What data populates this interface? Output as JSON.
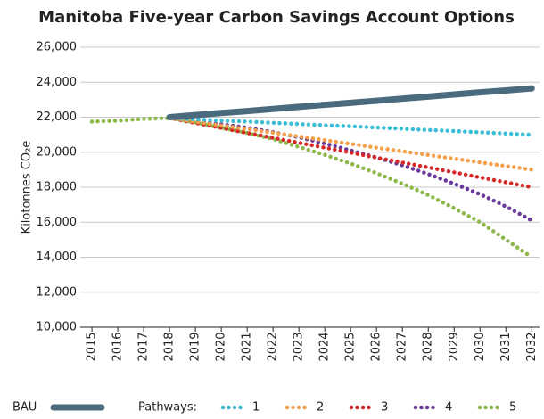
{
  "chart_data": {
    "type": "line",
    "title": "Manitoba Five-year Carbon Savings Account Options",
    "y_label": "Kilotonnes CO₂e",
    "legend_title": "Pathways:",
    "x": [
      2015,
      2016,
      2017,
      2018,
      2019,
      2020,
      2021,
      2022,
      2023,
      2024,
      2025,
      2026,
      2027,
      2028,
      2029,
      2030,
      2031,
      2032
    ],
    "xlim": [
      2014.55,
      2032.3
    ],
    "xticks": [
      2015,
      2016,
      2017,
      2018,
      2019,
      2020,
      2021,
      2022,
      2023,
      2024,
      2025,
      2026,
      2027,
      2028,
      2029,
      2030,
      2031,
      2032
    ],
    "ylim": [
      10000,
      26000
    ],
    "yticks": [
      {
        "value": 10000,
        "label": "10,000"
      },
      {
        "value": 12000,
        "label": "12,000"
      },
      {
        "value": 14000,
        "label": "14,000"
      },
      {
        "value": 16000,
        "label": "16,000"
      },
      {
        "value": 18000,
        "label": "18,000"
      },
      {
        "value": 20000,
        "label": "20,000"
      },
      {
        "value": 22000,
        "label": "22,000"
      },
      {
        "value": 24000,
        "label": "24,000"
      },
      {
        "value": 26000,
        "label": "26,000"
      }
    ],
    "grid": true,
    "legend": "bottom",
    "series": [
      {
        "name": "BAU",
        "color": "#4a6b7d",
        "style": "solid",
        "values": [
          null,
          null,
          null,
          22000,
          22120,
          22240,
          22350,
          22470,
          22590,
          22710,
          22820,
          22940,
          23060,
          23180,
          23300,
          23420,
          23530,
          23650
        ]
      },
      {
        "name": "1",
        "color": "#3bbdd6",
        "style": "dotted",
        "values": [
          null,
          null,
          null,
          21950,
          21880,
          21810,
          21750,
          21680,
          21610,
          21540,
          21480,
          21410,
          21340,
          21270,
          21210,
          21140,
          21070,
          21000
        ]
      },
      {
        "name": "2",
        "color": "#f5a04a",
        "style": "dotted",
        "values": [
          null,
          null,
          null,
          21950,
          21740,
          21530,
          21320,
          21110,
          20900,
          20690,
          20480,
          20260,
          20050,
          19840,
          19630,
          19420,
          19210,
          19000
        ]
      },
      {
        "name": "3",
        "color": "#d62a2a",
        "style": "dotted",
        "values": [
          null,
          null,
          null,
          21950,
          21670,
          21390,
          21100,
          20820,
          20540,
          20260,
          19980,
          19690,
          19410,
          19130,
          18850,
          18560,
          18280,
          18000
        ]
      },
      {
        "name": "4",
        "color": "#6a3a9a",
        "style": "dotted",
        "values": [
          null,
          null,
          null,
          21950,
          21800,
          21600,
          21400,
          21150,
          20850,
          20500,
          20100,
          19700,
          19250,
          18750,
          18200,
          17600,
          16900,
          16100
        ]
      },
      {
        "name": "5",
        "color": "#8db84a",
        "style": "dotted",
        "values": [
          21750,
          21800,
          21900,
          21950,
          21700,
          21400,
          21100,
          20750,
          20300,
          19850,
          19350,
          18800,
          18200,
          17550,
          16800,
          16000,
          15000,
          14000
        ]
      }
    ]
  }
}
